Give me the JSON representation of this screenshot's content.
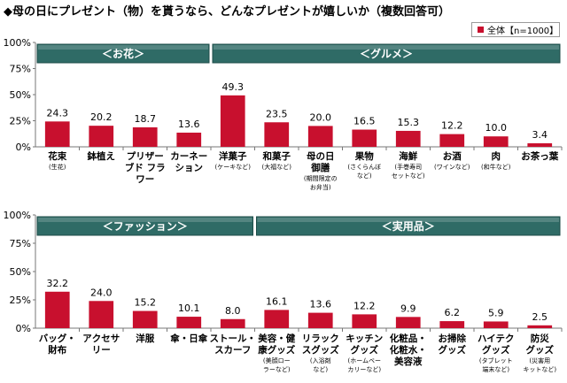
{
  "title": "◆母の日にプレゼント（物）を貰うなら、どんなプレゼントが嬉しいか（複数回答可）",
  "legend": {
    "label": "全体【n=1000】",
    "color": "#c8102e"
  },
  "colors": {
    "bar": "#c8102e",
    "banner": "#2f6b66",
    "banner_text": "#ffffff"
  },
  "chart_data": [
    {
      "type": "bar",
      "ylim": [
        0,
        100
      ],
      "yticks": [
        "0%",
        "25%",
        "50%",
        "75%",
        "100%"
      ],
      "grid": false,
      "groups": [
        {
          "label": "＜お花＞",
          "categories": [
            0,
            3
          ]
        },
        {
          "label": "＜グルメ＞",
          "categories": [
            4,
            11
          ]
        }
      ],
      "categories": [
        {
          "label": [
            "花束"
          ],
          "note": [
            "(生花)"
          ]
        },
        {
          "label": [
            "鉢植え"
          ],
          "note": []
        },
        {
          "label": [
            "プリザー",
            "ブド フラ",
            "ワー"
          ],
          "note": []
        },
        {
          "label": [
            "カーネー",
            "ション"
          ],
          "note": []
        },
        {
          "label": [
            "洋菓子"
          ],
          "note": [
            "(ケーキなど)"
          ]
        },
        {
          "label": [
            "和菓子"
          ],
          "note": [
            "(大福など)"
          ]
        },
        {
          "label": [
            "母の日",
            "御膳"
          ],
          "note": [
            "(期間限定の",
            "お弁当)"
          ]
        },
        {
          "label": [
            "果物"
          ],
          "note": [
            "(さくらんぼ",
            "など)"
          ]
        },
        {
          "label": [
            "海鮮"
          ],
          "note": [
            "(手巻寿司",
            "セットなど)"
          ]
        },
        {
          "label": [
            "お酒"
          ],
          "note": [
            "(ワインなど)"
          ]
        },
        {
          "label": [
            "肉"
          ],
          "note": [
            "(和牛など)"
          ]
        },
        {
          "label": [
            "お茶っ葉"
          ],
          "note": []
        }
      ],
      "values": [
        24.3,
        20.2,
        18.7,
        13.6,
        49.3,
        23.5,
        20.0,
        16.5,
        15.3,
        12.2,
        10.0,
        3.4
      ],
      "value_labels": [
        "24.3",
        "20.2",
        "18.7",
        "13.6",
        "49.3",
        "23.5",
        "20.0",
        "16.5",
        "15.3",
        "12.2",
        "10.0",
        "3.4"
      ]
    },
    {
      "type": "bar",
      "ylim": [
        0,
        100
      ],
      "yticks": [
        "0%",
        "25%",
        "50%",
        "75%",
        "100%"
      ],
      "grid": false,
      "groups": [
        {
          "label": "＜ファッション＞",
          "categories": [
            0,
            4
          ]
        },
        {
          "label": "＜実用品＞",
          "categories": [
            5,
            11
          ]
        }
      ],
      "categories": [
        {
          "label": [
            "バッグ・",
            "財布"
          ],
          "note": []
        },
        {
          "label": [
            "アクセサ",
            "リー"
          ],
          "note": []
        },
        {
          "label": [
            "洋服"
          ],
          "note": []
        },
        {
          "label": [
            "傘・日傘"
          ],
          "note": []
        },
        {
          "label": [
            "ストール・",
            "スカーフ"
          ],
          "note": []
        },
        {
          "label": [
            "美容・健",
            "康グッズ"
          ],
          "note": [
            "(美顔ロー",
            "ラーなど)"
          ]
        },
        {
          "label": [
            "リラック",
            "スグッズ"
          ],
          "note": [
            "(入浴剤",
            "など)"
          ]
        },
        {
          "label": [
            "キッチン",
            "グッズ"
          ],
          "note": [
            "(ホームベー",
            "カリーなど)"
          ]
        },
        {
          "label": [
            "化粧品・",
            "化粧水・",
            "美容液"
          ],
          "note": []
        },
        {
          "label": [
            "お掃除",
            "グッズ"
          ],
          "note": []
        },
        {
          "label": [
            "ハイテク",
            "グッズ"
          ],
          "note": [
            "(タブレット",
            "端末など)"
          ]
        },
        {
          "label": [
            "防災",
            "グッズ"
          ],
          "note": [
            "(災害用",
            "キットなど)"
          ]
        }
      ],
      "values": [
        32.2,
        24.0,
        15.2,
        10.1,
        8.0,
        16.1,
        13.6,
        12.2,
        9.9,
        6.2,
        5.9,
        2.5
      ],
      "value_labels": [
        "32.2",
        "24.0",
        "15.2",
        "10.1",
        "8.0",
        "16.1",
        "13.6",
        "12.2",
        "9.9",
        "6.2",
        "5.9",
        "2.5"
      ]
    }
  ]
}
